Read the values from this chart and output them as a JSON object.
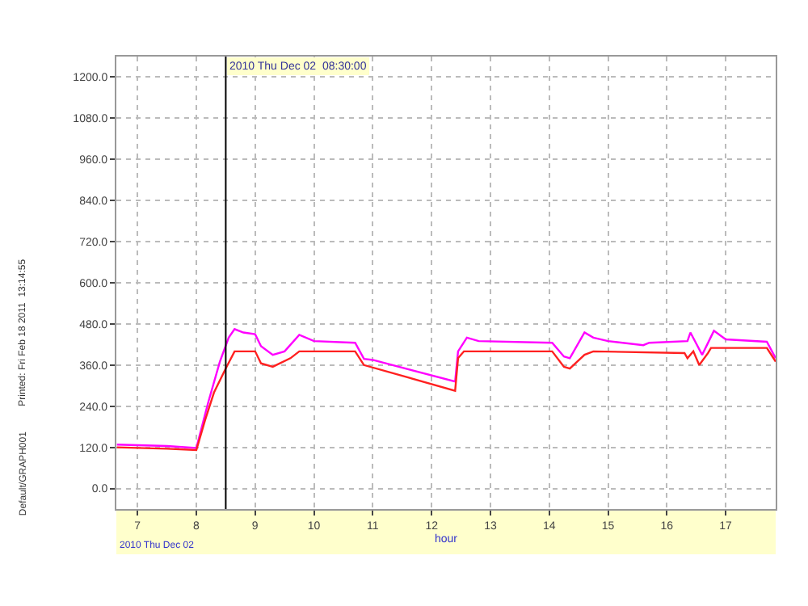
{
  "chart_data": {
    "type": "line",
    "xlabel": "hour",
    "series": [
      {
        "color": "#ff00ff",
        "x": [
          6.65,
          7.5,
          8.0,
          8.2,
          8.4,
          8.55,
          8.65,
          8.8,
          9.0,
          9.1,
          9.3,
          9.5,
          9.75,
          10.0,
          10.7,
          10.85,
          11.0,
          12.4,
          12.45,
          12.6,
          12.8,
          14.05,
          14.25,
          14.35,
          14.6,
          14.75,
          15.0,
          15.6,
          15.7,
          16.35,
          16.4,
          16.6,
          16.8,
          17.0,
          17.7,
          17.85
        ],
        "values": [
          128,
          124,
          118,
          250,
          370,
          440,
          465,
          455,
          450,
          415,
          390,
          400,
          448,
          430,
          425,
          378,
          375,
          312,
          400,
          440,
          430,
          425,
          385,
          380,
          455,
          440,
          430,
          418,
          425,
          430,
          455,
          390,
          460,
          435,
          428,
          380
        ]
      },
      {
        "color": "#ff2020",
        "x": [
          6.65,
          7.5,
          8.0,
          8.15,
          8.3,
          8.5,
          8.65,
          9.0,
          9.1,
          9.3,
          9.6,
          9.75,
          10.7,
          10.85,
          12.4,
          12.45,
          12.55,
          14.05,
          14.25,
          14.35,
          14.6,
          14.75,
          16.3,
          16.35,
          16.45,
          16.55,
          16.7,
          16.75,
          17.7,
          17.85
        ],
        "values": [
          120,
          116,
          112,
          200,
          280,
          350,
          400,
          400,
          365,
          355,
          380,
          400,
          400,
          360,
          285,
          380,
          400,
          400,
          355,
          350,
          390,
          400,
          395,
          380,
          400,
          360,
          395,
          410,
          410,
          370
        ]
      }
    ],
    "xlim": [
      6.64,
      17.85
    ],
    "xticks": [
      7,
      8,
      9,
      10,
      11,
      12,
      13,
      14,
      15,
      16,
      17
    ],
    "ylim": [
      -60,
      1260
    ],
    "yticks": [
      {
        "value": 0,
        "label": "0.0"
      },
      {
        "value": 120,
        "label": "120.0"
      },
      {
        "value": 240,
        "label": "240.0"
      },
      {
        "value": 360,
        "label": "360.0"
      },
      {
        "value": 480,
        "label": "480.0"
      },
      {
        "value": 600,
        "label": "600.0"
      },
      {
        "value": 720,
        "label": "720.0"
      },
      {
        "value": 840,
        "label": "840.0"
      },
      {
        "value": 960,
        "label": "960.0"
      },
      {
        "value": 1080,
        "label": "1080.0"
      },
      {
        "value": 1200,
        "label": "1200.0"
      }
    ],
    "grid": true,
    "marker": "none",
    "line_style": "solid",
    "ref_lines": [
      {
        "axis": "x",
        "value": 8.5,
        "label": "2010 Thu Dec 02  08:30:00",
        "color": "#000000"
      }
    ],
    "annotations": [
      "2010 Thu Dec 02",
      "Printed: Fri Feb 18 2011  13:14:55",
      "Default/GRAPH001"
    ]
  }
}
